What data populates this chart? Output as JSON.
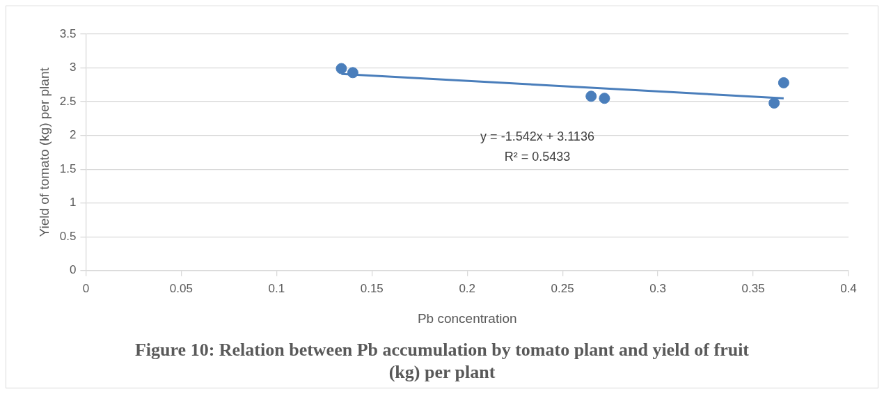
{
  "chart_data": {
    "type": "scatter",
    "title": "Figure 10: Relation between Pb accumulation by tomato plant and yield of fruit (kg) per plant",
    "xlabel": "Pb concentration",
    "ylabel": "Yield of tomato (kg) per plant",
    "xlim": [
      0,
      0.4
    ],
    "xticks": [
      0,
      0.05,
      0.1,
      0.15,
      0.2,
      0.25,
      0.3,
      0.35,
      0.4
    ],
    "ylim": [
      0,
      3.5
    ],
    "yticks": [
      0,
      0.5,
      1,
      1.5,
      2,
      2.5,
      3,
      3.5
    ],
    "grid": "y",
    "legend": false,
    "marker": "circle",
    "series": [
      {
        "type": "scatter",
        "color": "#4a7ebb",
        "x": [
          0.134,
          0.14,
          0.265,
          0.272,
          0.361,
          0.366
        ],
        "values": [
          2.99,
          2.93,
          2.58,
          2.55,
          2.48,
          2.78
        ]
      },
      {
        "type": "line",
        "color": "#4a7ebb",
        "marker": "none",
        "line_style": "solid",
        "x": [
          0.134,
          0.366
        ],
        "values": [
          2.91,
          2.55
        ]
      }
    ],
    "annotations": [
      "y = -1.542x + 3.1136",
      "R² = 0.5433"
    ]
  }
}
